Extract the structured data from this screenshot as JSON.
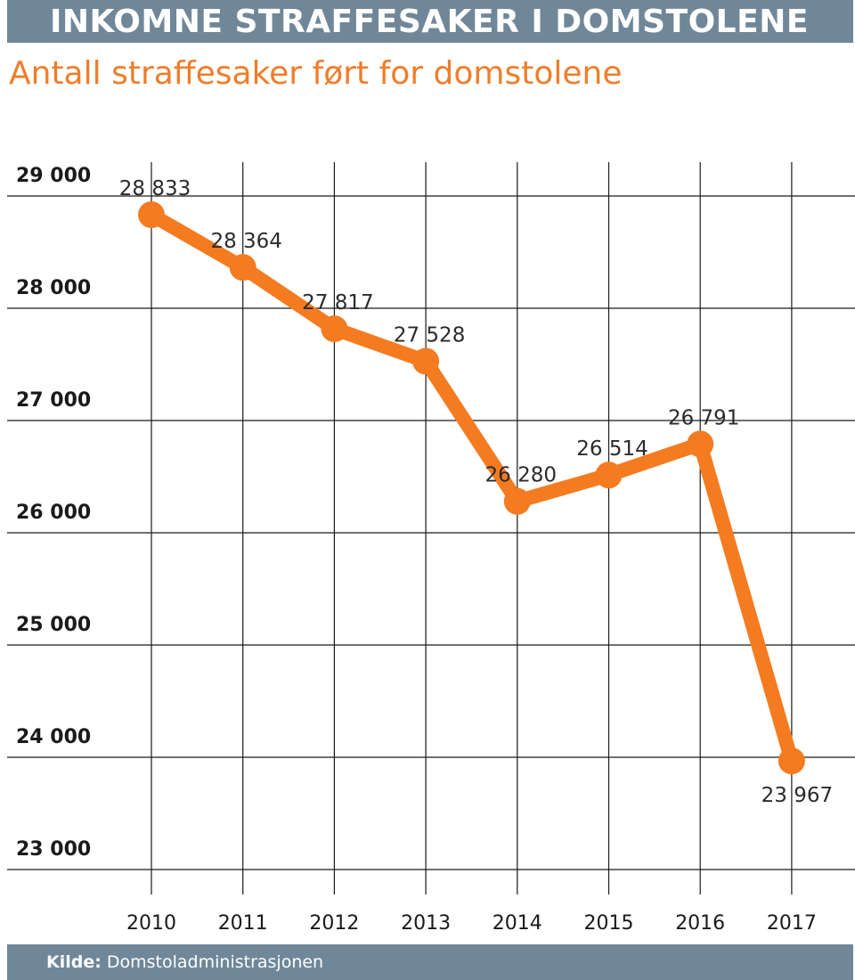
{
  "header": {
    "title": "INKOMNE STRAFFESAKER I DOMSTOLENE",
    "subtitle": "Antall straffesaker ført for domstolene"
  },
  "footer": {
    "source_label": "Kilde:",
    "source_value": "Domstoladministrasjonen"
  },
  "colors": {
    "line": "#f47b20",
    "bars": "#6f8799",
    "subtitle": "#f07d2a",
    "grid": "#1a1a1a"
  },
  "chart_data": {
    "type": "line",
    "title": "INKOMNE STRAFFESAKER I DOMSTOLENE",
    "subtitle": "Antall straffesaker ført for domstolene",
    "categories": [
      "2010",
      "2011",
      "2012",
      "2013",
      "2014",
      "2015",
      "2016",
      "2017"
    ],
    "values": [
      28833,
      28364,
      27817,
      27528,
      26280,
      26514,
      26791,
      23967
    ],
    "value_labels": [
      "28 833",
      "28 364",
      "27 817",
      "27 528",
      "26 280",
      "26 514",
      "26 791",
      "23 967"
    ],
    "y_ticks": [
      29000,
      28000,
      27000,
      26000,
      25000,
      24000,
      23000
    ],
    "y_tick_labels": [
      "29 000",
      "28 000",
      "27 000",
      "26 000",
      "25 000",
      "24 000",
      "23 000"
    ],
    "ylim": [
      22800,
      29100
    ],
    "xlabel": "",
    "ylabel": "",
    "grid": true,
    "source": "Kilde: Domstoladministrasjonen"
  }
}
